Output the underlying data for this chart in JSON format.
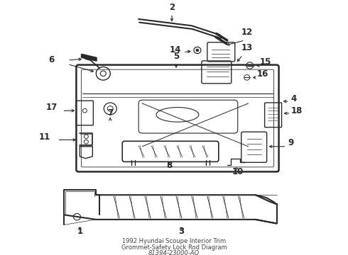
{
  "bg_color": "#f0f0f0",
  "line_color": "#2a2a2a",
  "figsize": [
    4.9,
    3.6
  ],
  "dpi": 100,
  "title_lines": [
    "1992 Hyundai Scoupe Interior Trim",
    "Grommet-Safety Lock Rod Diagram",
    "81394-23000-AQ"
  ],
  "label_fontsize": 8.5,
  "title_fontsize": 6.0
}
